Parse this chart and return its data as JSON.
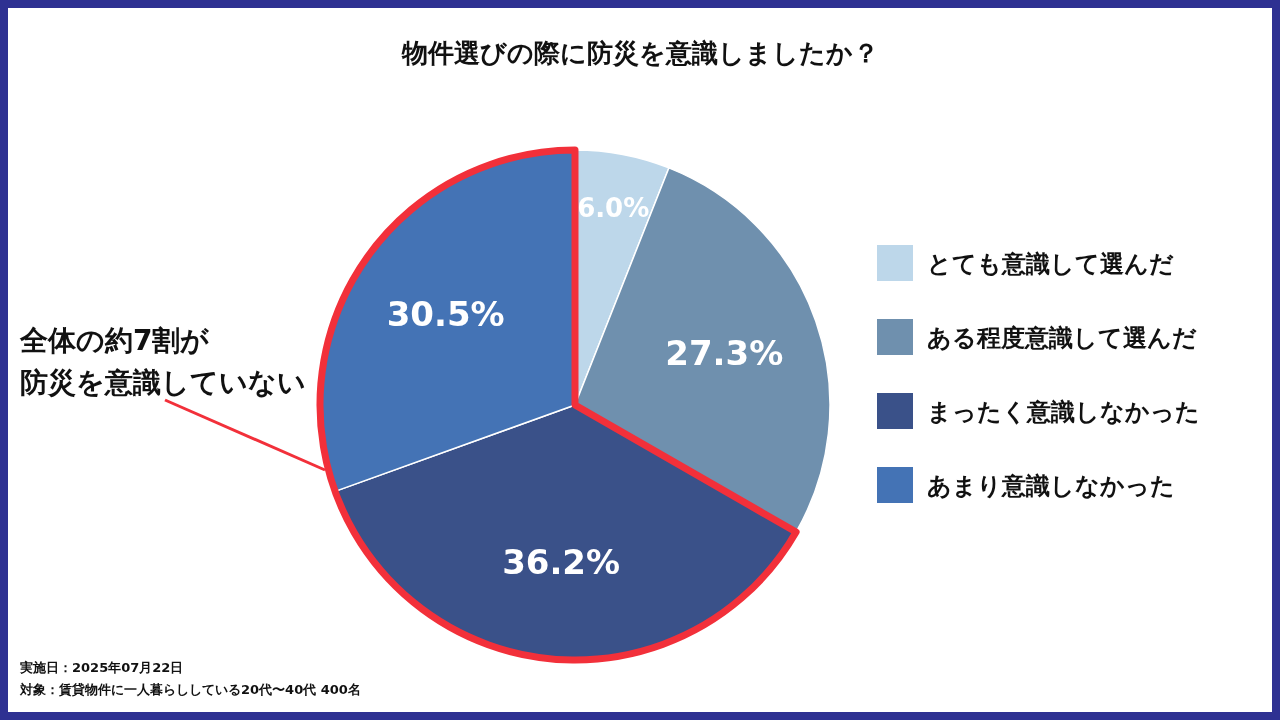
{
  "chart_data": {
    "type": "pie",
    "title": "物件選びの際に防災を意識しましたか？",
    "categories": [
      "とても意識して選んだ",
      "ある程度意識して選んだ",
      "まったく意識しなかった",
      "あまり意識しなかった"
    ],
    "values": [
      6.0,
      27.3,
      36.2,
      30.5
    ],
    "value_labels": [
      "6.0%",
      "27.3%",
      "36.2%",
      "30.5%"
    ],
    "colors": [
      "#bdd7ea",
      "#6f90ae",
      "#3a5189",
      "#4473b5"
    ],
    "legend": "right",
    "annotations": [
      "全体の約7割が",
      "防災を意識していない",
      "実施日：2025年07月22日",
      "対象：賃貸物件に一人暮らししている20代〜40代 400名"
    ]
  }
}
